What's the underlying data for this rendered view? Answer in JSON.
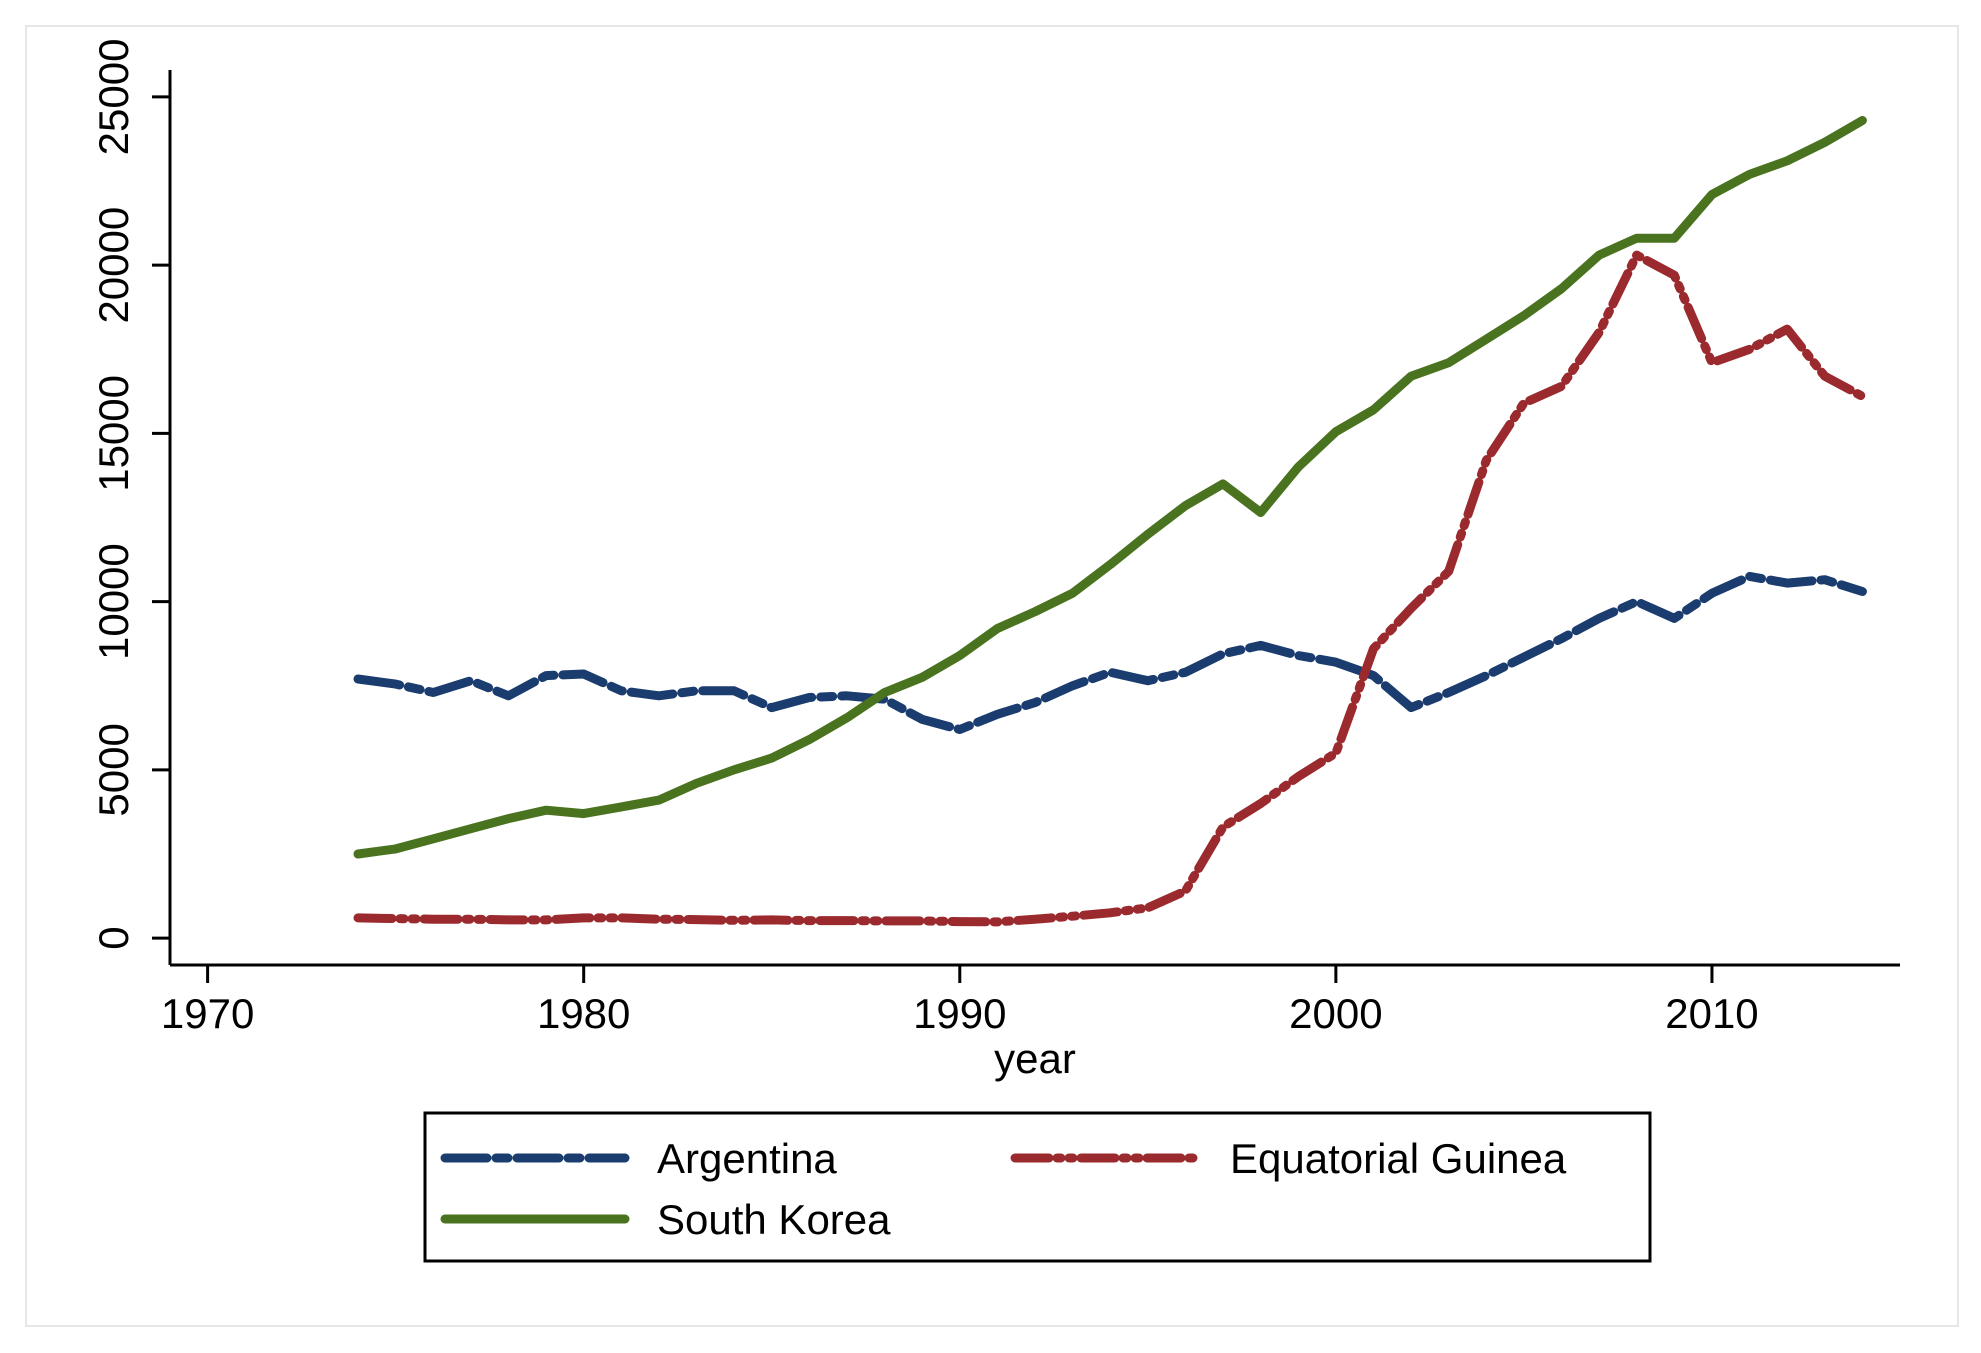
{
  "chart_data": {
    "type": "line",
    "title": "",
    "xlabel": "year",
    "ylabel": "",
    "xlim": [
      1969,
      2015
    ],
    "ylim": [
      -800,
      25800
    ],
    "x_ticks": [
      1970,
      1980,
      1990,
      2000,
      2010
    ],
    "y_ticks": [
      0,
      5000,
      10000,
      15000,
      20000,
      25000
    ],
    "grid": false,
    "legend_position": "bottom",
    "x": [
      1974,
      1975,
      1976,
      1977,
      1978,
      1979,
      1980,
      1981,
      1982,
      1983,
      1984,
      1985,
      1986,
      1987,
      1988,
      1989,
      1990,
      1991,
      1992,
      1993,
      1994,
      1995,
      1996,
      1997,
      1998,
      1999,
      2000,
      2001,
      2002,
      2003,
      2004,
      2005,
      2006,
      2007,
      2008,
      2009,
      2010,
      2011,
      2012,
      2013,
      2014
    ],
    "series": [
      {
        "name": "Argentina",
        "color": "#1a3c6e",
        "dash": "long-short",
        "values": [
          7700,
          7550,
          7300,
          7650,
          7200,
          7800,
          7850,
          7350,
          7200,
          7350,
          7350,
          6850,
          7150,
          7200,
          7100,
          6500,
          6200,
          6650,
          7000,
          7500,
          7900,
          7650,
          7900,
          8450,
          8700,
          8400,
          8200,
          7800,
          6850,
          7300,
          7800,
          8350,
          8900,
          9500,
          10000,
          9500,
          10250,
          10750,
          10550,
          10650,
          10300
        ]
      },
      {
        "name": "Equatorial Guinea",
        "color": "#9b2a2e",
        "dash": "dash-dot-dot",
        "values": [
          600,
          580,
          560,
          560,
          540,
          540,
          600,
          600,
          560,
          550,
          530,
          540,
          520,
          520,
          510,
          510,
          490,
          480,
          560,
          650,
          750,
          900,
          1400,
          3300,
          4000,
          4800,
          5500,
          8600,
          9800,
          10900,
          14200,
          15900,
          16400,
          18000,
          20300,
          19700,
          17100,
          17500,
          18100,
          16700,
          16100
        ]
      },
      {
        "name": "South Korea",
        "color": "#4a7320",
        "dash": "solid",
        "values": [
          2500,
          2650,
          2950,
          3250,
          3550,
          3800,
          3700,
          3900,
          4100,
          4600,
          5000,
          5350,
          5900,
          6550,
          7300,
          7750,
          8400,
          9200,
          9700,
          10250,
          11100,
          12000,
          12850,
          13500,
          12650,
          14000,
          15050,
          15700,
          16700,
          17100,
          17800,
          18500,
          19300,
          20300,
          20800,
          20800,
          22100,
          22700,
          23100,
          23650,
          24300
        ]
      }
    ]
  }
}
